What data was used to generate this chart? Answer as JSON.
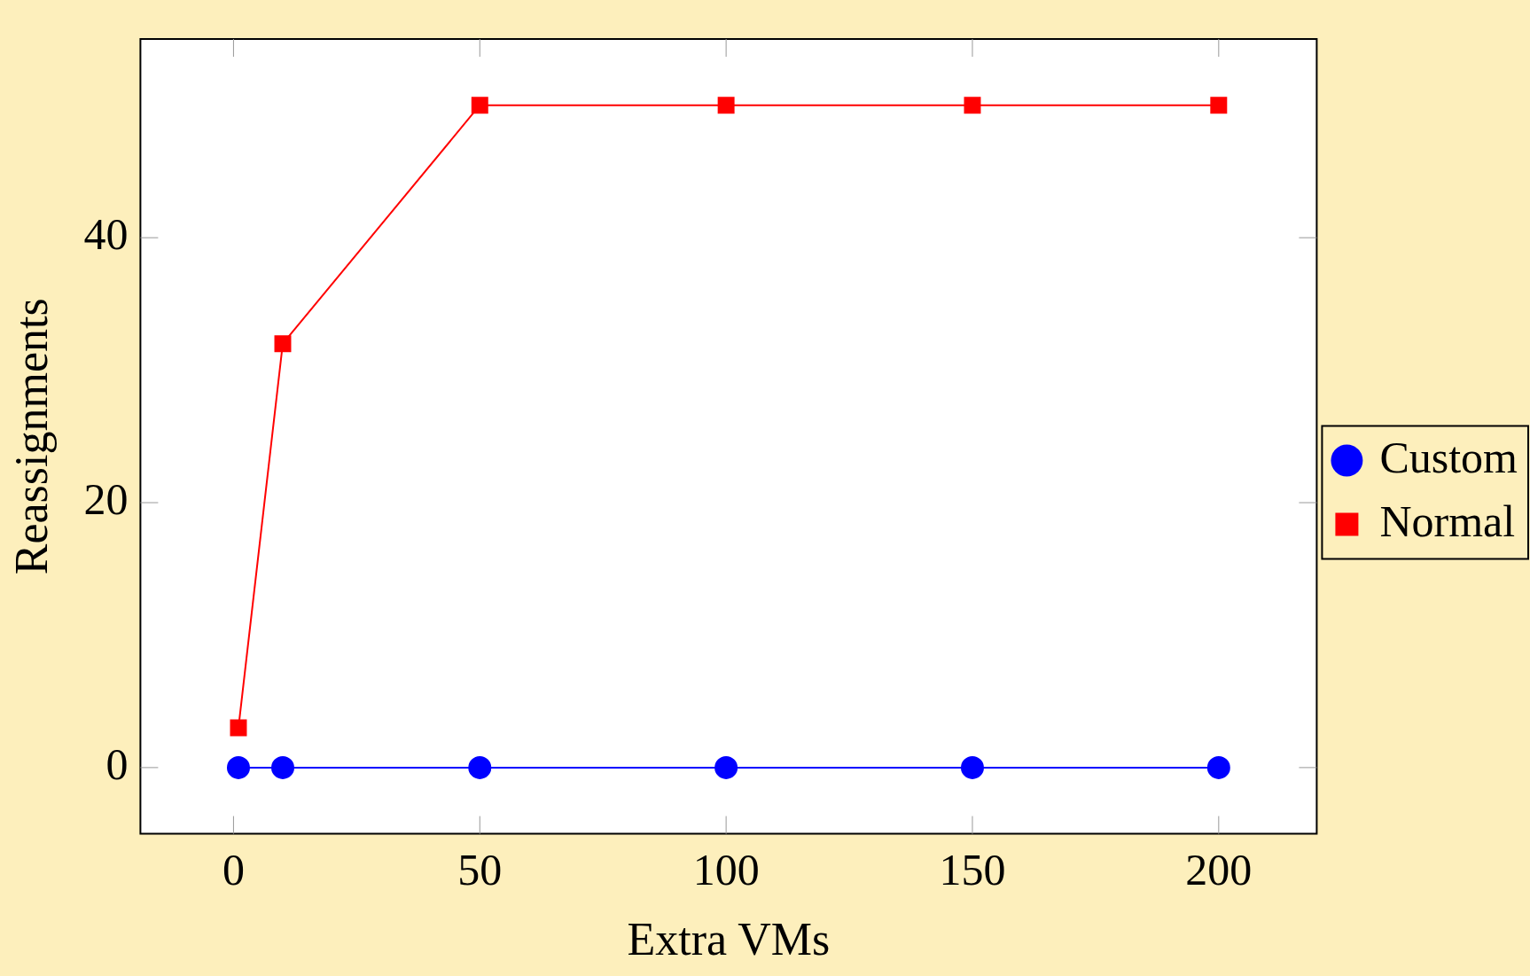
{
  "chart_data": {
    "type": "line",
    "xlabel": "Extra VMs",
    "ylabel": "Reassignments",
    "x": [
      1,
      10,
      50,
      100,
      150,
      200
    ],
    "series": [
      {
        "name": "Custom",
        "color": "#0000ff",
        "marker": "circle",
        "values": [
          0,
          0,
          0,
          0,
          0,
          0
        ]
      },
      {
        "name": "Normal",
        "color": "#ff0000",
        "marker": "square",
        "values": [
          3,
          32,
          50,
          50,
          50,
          50
        ]
      }
    ],
    "xlim": [
      -18.9,
      219.9
    ],
    "ylim": [
      -5,
      55
    ],
    "xticks": [
      0,
      50,
      100,
      150,
      200
    ],
    "yticks": [
      0,
      20,
      40
    ],
    "grid": false,
    "legend": "right",
    "line_style": "solid"
  }
}
